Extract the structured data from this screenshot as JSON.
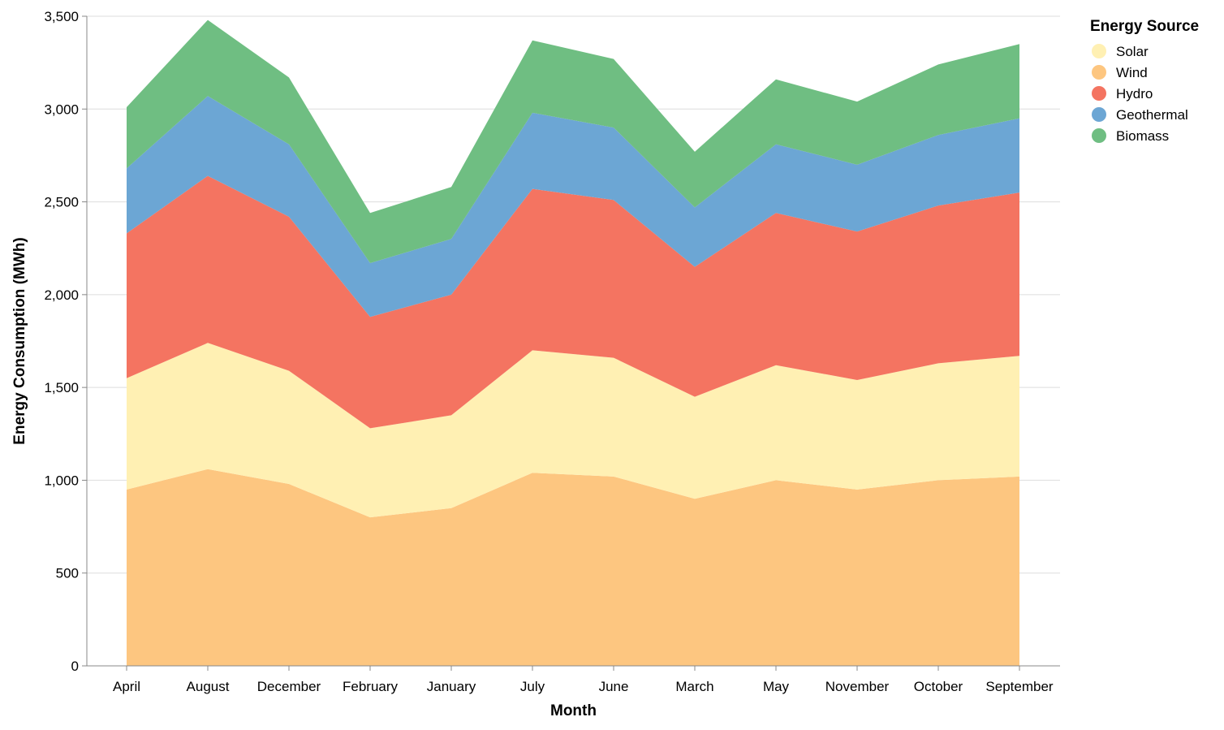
{
  "chart_data": {
    "type": "area",
    "stacked": true,
    "xlabel": "Month",
    "ylabel": "Energy Consumption (MWh)",
    "ylim": [
      0,
      3500
    ],
    "yticks": [
      0,
      500,
      1000,
      1500,
      2000,
      2500,
      3000,
      3500
    ],
    "ytick_labels": [
      "0",
      "500",
      "1,000",
      "1,500",
      "2,000",
      "2,500",
      "3,000",
      "3,500"
    ],
    "grid": true,
    "categories": [
      "April",
      "August",
      "December",
      "February",
      "January",
      "July",
      "June",
      "March",
      "May",
      "November",
      "October",
      "September"
    ],
    "legend": {
      "title": "Energy Source",
      "placement": "top-right",
      "entries": [
        "Solar",
        "Wind",
        "Hydro",
        "Geothermal",
        "Biomass"
      ]
    },
    "stack_order": [
      "Wind",
      "Solar",
      "Hydro",
      "Geothermal",
      "Biomass"
    ],
    "series": [
      {
        "name": "Solar",
        "color": "#fff0b3",
        "values": [
          600,
          680,
          610,
          480,
          500,
          660,
          640,
          550,
          620,
          590,
          630,
          650
        ]
      },
      {
        "name": "Wind",
        "color": "#fdc680",
        "values": [
          950,
          1060,
          980,
          800,
          850,
          1040,
          1020,
          900,
          1000,
          950,
          1000,
          1020
        ]
      },
      {
        "name": "Hydro",
        "color": "#f47461",
        "values": [
          780,
          900,
          830,
          600,
          650,
          870,
          850,
          700,
          820,
          800,
          850,
          880
        ]
      },
      {
        "name": "Geothermal",
        "color": "#6ca6d4",
        "values": [
          350,
          430,
          390,
          290,
          300,
          410,
          390,
          320,
          370,
          360,
          380,
          400
        ]
      },
      {
        "name": "Biomass",
        "color": "#6fbe82",
        "values": [
          330,
          410,
          360,
          270,
          280,
          390,
          370,
          300,
          350,
          340,
          380,
          400
        ]
      }
    ]
  }
}
